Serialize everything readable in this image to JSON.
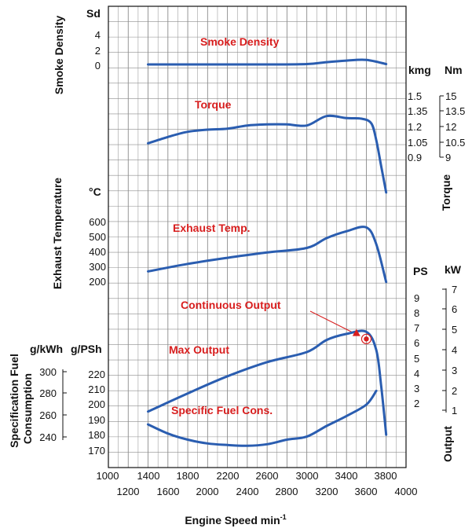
{
  "chart_data": {
    "type": "line",
    "title": "",
    "xlabel": "Engine Speed min",
    "xlabel_sup": "-1",
    "x_ticks_top": [
      "1000",
      "1400",
      "1800",
      "2200",
      "2600",
      "3000",
      "3400",
      "3800"
    ],
    "x_ticks_bottom": [
      "1200",
      "1600",
      "2000",
      "2400",
      "2800",
      "3200",
      "3600",
      "4000"
    ],
    "xlim": [
      1000,
      4000
    ],
    "panels": {
      "smoke": {
        "axis_title": "Smoke Density",
        "unit": "Sd",
        "ticks": [
          "4",
          "2",
          "0"
        ],
        "curve_label": "Smoke Density"
      },
      "torque": {
        "axis_title": "Torque",
        "unit_kgm": "kmg",
        "unit_nm": "Nm",
        "ticks_kgm": [
          "1.5",
          "1.35",
          "1.2",
          "1.05",
          "0.9"
        ],
        "ticks_nm": [
          "15",
          "13.5",
          "12",
          "10.5",
          "9"
        ],
        "curve_label": "Torque"
      },
      "exhaust": {
        "axis_title": "Exhaust Temperature",
        "unit": "°C",
        "ticks": [
          "600",
          "500",
          "400",
          "300",
          "200"
        ],
        "curve_label": "Exhaust Temp."
      },
      "output": {
        "axis_title": "Output",
        "unit_ps": "PS",
        "unit_kw": "kW",
        "ticks_ps": [
          "9",
          "8",
          "7",
          "6",
          "5",
          "4",
          "3",
          "2"
        ],
        "ticks_kw": [
          "7",
          "6",
          "5",
          "4",
          "3",
          "2",
          "1"
        ],
        "curve_label": "Max Output",
        "annotation": "Continuous Output"
      },
      "fuel": {
        "axis_title_line1": "Specification Fuel",
        "axis_title_line2": "Consumption",
        "unit_gkwh": "g/kWh",
        "unit_gpsh": "g/PSh",
        "ticks_gkwh": [
          "300",
          "280",
          "260",
          "240"
        ],
        "ticks_gpsh": [
          "220",
          "210",
          "200",
          "190",
          "180",
          "170"
        ],
        "curve_label": "Specific Fuel Cons."
      }
    },
    "series": [
      {
        "name": "Smoke Density",
        "unit": "Sd",
        "x": [
          1400,
          1800,
          2200,
          2600,
          3000,
          3200,
          3400,
          3600,
          3800
        ],
        "y": [
          0,
          0,
          0,
          0,
          0.05,
          0.3,
          0.5,
          0.6,
          0.05
        ]
      },
      {
        "name": "Torque",
        "unit": "Nm",
        "x": [
          1400,
          1600,
          1800,
          2000,
          2200,
          2400,
          2600,
          2800,
          3000,
          3200,
          3400,
          3550,
          3650,
          3700,
          3750,
          3800
        ],
        "y": [
          10.7,
          11.3,
          11.8,
          12.0,
          12.1,
          12.4,
          12.5,
          12.5,
          12.4,
          13.3,
          13.1,
          13.05,
          12.6,
          11.0,
          8.5,
          6.0
        ]
      },
      {
        "name": "Exhaust Temp.",
        "unit": "°C",
        "x": [
          1400,
          1800,
          2200,
          2600,
          3000,
          3200,
          3400,
          3600,
          3700,
          3800
        ],
        "y": [
          260,
          310,
          350,
          385,
          415,
          480,
          525,
          550,
          440,
          190
        ]
      },
      {
        "name": "Max Output",
        "unit": "kW",
        "x": [
          1400,
          1800,
          2200,
          2600,
          3000,
          3200,
          3400,
          3600,
          3700,
          3750,
          3800
        ],
        "y": [
          1.05,
          1.95,
          2.8,
          3.5,
          4.0,
          4.6,
          4.9,
          5.0,
          4.1,
          2.3,
          -0.1
        ]
      },
      {
        "name": "Specific Fuel Cons.",
        "unit": "g/PSh",
        "x": [
          1400,
          1600,
          1800,
          2000,
          2200,
          2400,
          2600,
          2800,
          3000,
          3200,
          3400,
          3600,
          3700
        ],
        "y": [
          188,
          182,
          178,
          175.5,
          174.5,
          174,
          175,
          178,
          180,
          187,
          193.5,
          201,
          210
        ]
      }
    ],
    "markers": [
      {
        "name": "Continuous Output point",
        "x": 3600,
        "y": 4.65,
        "unit": "kW"
      },
      {
        "name": "Max Output point",
        "x": 3500,
        "y": 4.95,
        "unit": "kW"
      }
    ],
    "colors": {
      "curve": "#2a5db0",
      "label": "#d81e1e",
      "grid": "#8c8c8c",
      "axis": "#111111"
    }
  }
}
